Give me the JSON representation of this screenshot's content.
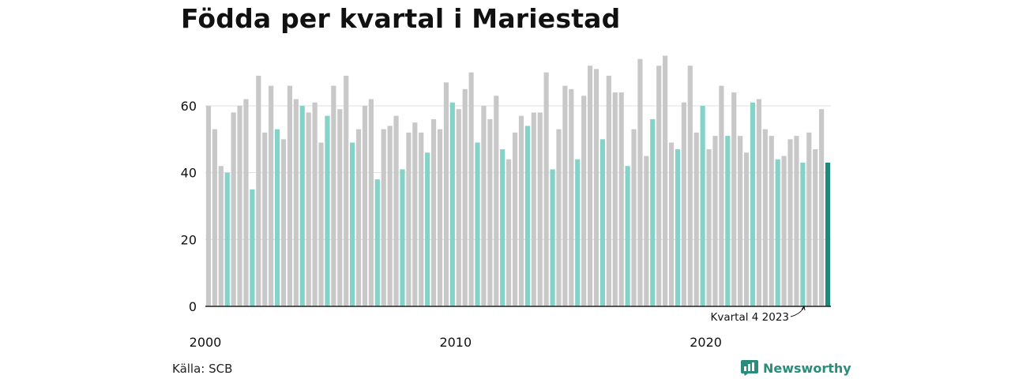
{
  "title": "Födda per kvartal i Mariestad",
  "source": "Källa: SCB",
  "brand": "Newsworthy",
  "annotation": "Kvartal 4 2023",
  "colors": {
    "default": "#c8c8c8",
    "highlight": "#85d3c8",
    "latest": "#1f8a7a",
    "grid": "#e0e0e0",
    "axis": "#222222",
    "brand": "#2a8c7b"
  },
  "chart_data": {
    "type": "bar",
    "title": "Födda per kvartal i Mariestad",
    "x_tick_labels": [
      "2000",
      "2010",
      "2020"
    ],
    "y_ticks": [
      0,
      20,
      40,
      60
    ],
    "ylim": [
      0,
      75
    ],
    "grid": true,
    "highlighted_quarter": 4,
    "series": [
      {
        "values": [
          60,
          53,
          42,
          40,
          58,
          60,
          62,
          35,
          69,
          52,
          66,
          53,
          50,
          66,
          62,
          60,
          58,
          61,
          49,
          57,
          66,
          59,
          69,
          49,
          53,
          60,
          62,
          38,
          53,
          54,
          57,
          41,
          52,
          55,
          52,
          46,
          56,
          53,
          67,
          61,
          59,
          65,
          70,
          49,
          60,
          56,
          63,
          47,
          44,
          52,
          57,
          54,
          58,
          58,
          70,
          41,
          53,
          66,
          65,
          44,
          63,
          72,
          71,
          50,
          69,
          64,
          64,
          42,
          53,
          74,
          45,
          56,
          72,
          75,
          49,
          47,
          61,
          72,
          52,
          60,
          47,
          51,
          66,
          51,
          64,
          51,
          46,
          61,
          62,
          53,
          51,
          44,
          45,
          50,
          51,
          43,
          52,
          47,
          59,
          43
        ]
      }
    ]
  }
}
